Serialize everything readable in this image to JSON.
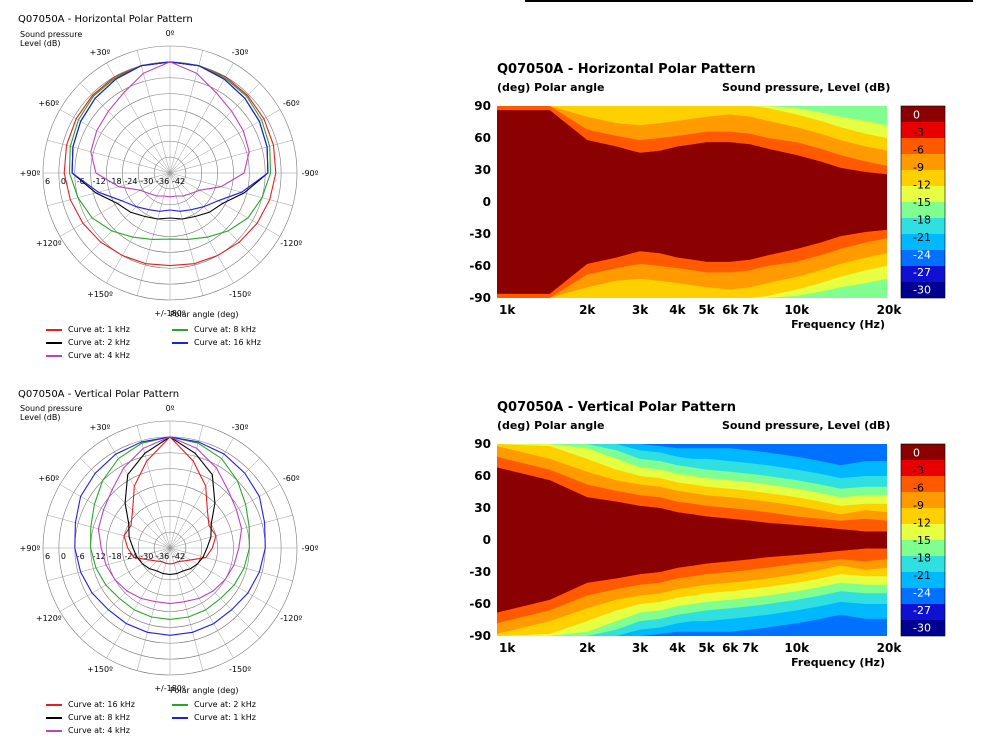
{
  "charts": [
    {
      "id": "hpolar",
      "title": "Q07050A - Horizontal Polar Pattern",
      "ylabel": [
        "Sound pressure",
        "Level  (dB)"
      ],
      "xlabel": "Polar angle  (deg)",
      "angle_labels": [
        "0º",
        "-30º",
        "-60º",
        "-90º",
        "-120º",
        "-150º",
        "+/-180º",
        "+150º",
        "+120º",
        "+90º",
        "+60º",
        "+30º"
      ],
      "radial_labels": [
        "6",
        "0",
        "-6",
        "-12",
        "-18",
        "-24",
        "-30",
        "-36",
        "-42"
      ],
      "legend": [
        {
          "label": "Curve at: 1 kHz",
          "color": "#e02020"
        },
        {
          "label": "Curve at: 8 kHz",
          "color": "#2aa52a"
        },
        {
          "label": "Curve at: 2 kHz",
          "color": "#000000"
        },
        {
          "label": "Curve at: 16 kHz",
          "color": "#2020e0"
        },
        {
          "label": "Curve at: 4 kHz",
          "color": "#c040c0"
        }
      ]
    },
    {
      "id": "vpolar",
      "title": "Q07050A - Vertical Polar Pattern",
      "ylabel": [
        "Sound pressure",
        "Level  (dB)"
      ],
      "xlabel": "Polar angle  (deg)",
      "angle_labels": [
        "0º",
        "-30º",
        "-60º",
        "-90º",
        "-120º",
        "-150º",
        "+/-180º",
        "+150º",
        "+120º",
        "+90º",
        "+60º",
        "+30º"
      ],
      "radial_labels": [
        "6",
        "0",
        "-6",
        "-12",
        "-18",
        "-24",
        "-30",
        "-36",
        "-42"
      ],
      "legend": [
        {
          "label": "Curve at: 16 kHz",
          "color": "#e02020"
        },
        {
          "label": "Curve at: 2 kHz",
          "color": "#2aa52a"
        },
        {
          "label": "Curve at: 8 kHz",
          "color": "#000000"
        },
        {
          "label": "Curve at: 1 kHz",
          "color": "#2020e0"
        },
        {
          "label": "Curve at: 4 kHz",
          "color": "#c040c0"
        }
      ]
    },
    {
      "id": "hheat",
      "title": "Q07050A - Horizontal Polar Pattern",
      "y_caption": "(deg)  Polar angle",
      "scale_caption": "Sound pressure, Level  (dB)",
      "xlabel": "Frequency  (Hz)",
      "y_ticks": [
        "90",
        "60",
        "30",
        "0",
        "-30",
        "-60",
        "-90"
      ],
      "x_ticks": [
        "1k",
        "2k",
        "3k",
        "4k",
        "5k",
        "6k",
        "7k",
        "10k",
        "20k"
      ],
      "scale_labels": [
        "0",
        "-3",
        "-6",
        "-9",
        "-12",
        "-15",
        "-18",
        "-21",
        "-24",
        "-27",
        "-30"
      ]
    },
    {
      "id": "vheat",
      "title": "Q07050A - Vertical Polar Pattern",
      "y_caption": "(deg)  Polar angle",
      "scale_caption": "Sound pressure, Level  (dB)",
      "xlabel": "Frequency  (Hz)",
      "y_ticks": [
        "90",
        "60",
        "30",
        "0",
        "-30",
        "-60",
        "-90"
      ],
      "x_ticks": [
        "1k",
        "2k",
        "3k",
        "4k",
        "5k",
        "6k",
        "7k",
        "10k",
        "20k"
      ],
      "scale_labels": [
        "0",
        "-3",
        "-6",
        "-9",
        "-12",
        "-15",
        "-18",
        "-21",
        "-24",
        "-27",
        "-30"
      ]
    }
  ],
  "colors": {
    "scale": [
      "#8b0000",
      "#e80000",
      "#ff5a00",
      "#ff9a00",
      "#ffd000",
      "#e6ff40",
      "#80ff90",
      "#30e0e0",
      "#00b8ff",
      "#0070ff",
      "#1010d0",
      "#000090",
      "#000000"
    ]
  },
  "chart_data": [
    {
      "type": "polar",
      "name": "Horizontal Polar Pattern",
      "angles_deg": [
        0,
        15,
        30,
        45,
        60,
        75,
        90,
        105,
        120,
        135,
        150,
        165,
        180
      ],
      "rlim": [
        -42,
        6
      ],
      "series": [
        {
          "name": "Curve at: 1 kHz",
          "values": [
            0,
            0,
            0,
            -0.5,
            -1,
            -1.5,
            -2,
            -3,
            -4,
            -5,
            -6,
            -6.5,
            -7
          ]
        },
        {
          "name": "Curve at: 2 kHz",
          "values": [
            0,
            0,
            -0.5,
            -1,
            -2,
            -3,
            -4,
            -6,
            -8,
            -11,
            -14,
            -16,
            -17
          ]
        },
        {
          "name": "Curve at: 4 kHz",
          "values": [
            0,
            0,
            -1,
            -2,
            -3,
            -4,
            -5,
            -13,
            -19,
            -21,
            -23,
            -24,
            -25
          ]
        },
        {
          "name": "Curve at: 8 kHz",
          "values": [
            0,
            0,
            -1,
            -2,
            -3,
            -4,
            -5,
            -14,
            -21,
            -24,
            -26,
            -27,
            -28
          ]
        },
        {
          "name": "Curve at: 16 kHz",
          "values": [
            0,
            -3,
            -7,
            -9,
            -10,
            -11,
            -14,
            -22,
            -29,
            -31,
            -32,
            -33,
            -33
          ]
        }
      ]
    },
    {
      "type": "polar",
      "name": "Vertical Polar Pattern",
      "angles_deg": [
        0,
        15,
        30,
        45,
        60,
        75,
        90,
        105,
        120,
        135,
        150,
        165,
        180
      ],
      "rlim": [
        -42,
        6
      ],
      "series": [
        {
          "name": "Curve at: 16 kHz",
          "values": [
            0,
            -8,
            -15,
            -22,
            -25,
            -24,
            -26,
            -28,
            -33,
            -35,
            -36,
            -36,
            -36
          ]
        },
        {
          "name": "Curve at: 2 kHz",
          "values": [
            0,
            -1,
            -3,
            -6,
            -9,
            -11,
            -12,
            -13,
            -14,
            -15,
            -15,
            -15,
            -15
          ]
        },
        {
          "name": "Curve at: 8 kHz",
          "values": [
            0,
            -5,
            -10,
            -18,
            -24,
            -26,
            -28,
            -29,
            -30,
            -31,
            -32,
            -32,
            -32
          ]
        },
        {
          "name": "Curve at: 1 kHz",
          "values": [
            0,
            -0.5,
            -1,
            -2,
            -3,
            -5,
            -6,
            -7,
            -8,
            -9,
            -9,
            -9,
            -9
          ]
        },
        {
          "name": "Curve at: 4 kHz",
          "values": [
            0,
            -3,
            -7,
            -11,
            -13,
            -14,
            -16,
            -17,
            -18,
            -19,
            -20,
            -21,
            -21
          ]
        }
      ]
    },
    {
      "type": "heatmap",
      "name": "Horizontal Polar Pattern",
      "x_hz": [
        1000,
        1500,
        2000,
        2500,
        3000,
        3500,
        4000,
        4500,
        5000,
        6000,
        7000,
        8000,
        10000,
        12000,
        14000,
        17000,
        20000
      ],
      "contour_angle_deg": {
        "-3dB": [
          86,
          86,
          58,
          52,
          46,
          48,
          52,
          54,
          56,
          56,
          54,
          50,
          44,
          38,
          32,
          28,
          26
        ],
        "-6dB": [
          90,
          90,
          68,
          62,
          58,
          60,
          62,
          64,
          66,
          66,
          64,
          60,
          56,
          50,
          44,
          38,
          34
        ],
        "-9dB": [
          90,
          90,
          80,
          74,
          72,
          74,
          76,
          78,
          80,
          82,
          80,
          76,
          70,
          64,
          58,
          52,
          48
        ],
        "-12dB": [
          90,
          90,
          90,
          90,
          90,
          90,
          90,
          90,
          90,
          90,
          90,
          88,
          82,
          76,
          70,
          64,
          60
        ],
        "-15dB": [
          90,
          90,
          90,
          90,
          90,
          90,
          90,
          90,
          90,
          90,
          90,
          90,
          88,
          84,
          80,
          76,
          72
        ],
        "-18dB": [
          90,
          90,
          90,
          90,
          90,
          90,
          90,
          90,
          90,
          90,
          90,
          90,
          90,
          90,
          88,
          86,
          84
        ]
      },
      "zlim": [
        -30,
        0
      ]
    },
    {
      "type": "heatmap",
      "name": "Vertical Polar Pattern",
      "x_hz": [
        1000,
        1500,
        2000,
        2500,
        3000,
        3500,
        4000,
        4500,
        5000,
        6000,
        7000,
        8000,
        10000,
        12000,
        14000,
        17000,
        20000
      ],
      "contour_angle_deg": {
        "-3dB": [
          68,
          56,
          40,
          36,
          32,
          30,
          26,
          24,
          22,
          20,
          18,
          16,
          14,
          12,
          10,
          8,
          8
        ],
        "-6dB": [
          78,
          66,
          52,
          46,
          42,
          40,
          36,
          34,
          32,
          30,
          28,
          26,
          22,
          20,
          18,
          20,
          18
        ],
        "-9dB": [
          88,
          76,
          64,
          56,
          52,
          50,
          46,
          44,
          42,
          40,
          38,
          36,
          32,
          28,
          24,
          28,
          26
        ],
        "-12dB": [
          90,
          88,
          76,
          66,
          60,
          58,
          54,
          52,
          50,
          48,
          46,
          44,
          40,
          36,
          32,
          34,
          34
        ],
        "-15dB": [
          90,
          90,
          86,
          76,
          68,
          66,
          62,
          60,
          58,
          56,
          54,
          52,
          48,
          44,
          40,
          42,
          42
        ],
        "-18dB": [
          90,
          90,
          90,
          84,
          76,
          74,
          70,
          68,
          66,
          64,
          62,
          60,
          56,
          52,
          48,
          50,
          50
        ],
        "-21dB": [
          90,
          90,
          90,
          90,
          84,
          82,
          78,
          76,
          76,
          74,
          72,
          70,
          66,
          62,
          58,
          60,
          60
        ],
        "-24dB": [
          90,
          90,
          90,
          90,
          90,
          88,
          86,
          86,
          86,
          86,
          84,
          82,
          78,
          74,
          70,
          74,
          74
        ],
        "-27dB": [
          90,
          90,
          90,
          90,
          90,
          90,
          90,
          90,
          90,
          90,
          90,
          90,
          88,
          86,
          82,
          86,
          86
        ]
      },
      "zlim": [
        -30,
        0
      ]
    }
  ]
}
